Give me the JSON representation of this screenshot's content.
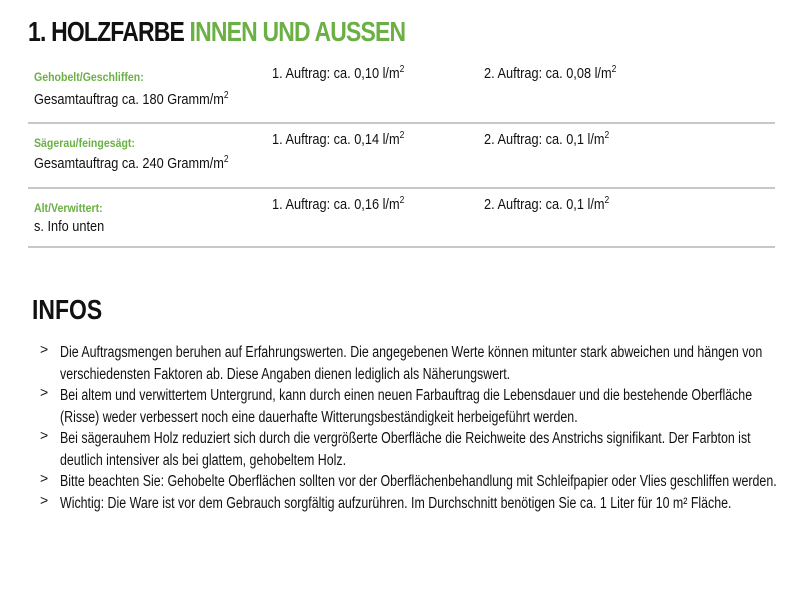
{
  "title": {
    "part1": "1. HOLZFARBE",
    "part2": "INNEN UND AUSSEN"
  },
  "colors": {
    "accent": "#6bb044",
    "divider": "#c8c8c8"
  },
  "rows": [
    {
      "label": "Gehobelt/Geschliffen:",
      "sub": "Gesamtauftrag ca. 180 Gramm/m",
      "sub_sup": "2",
      "c1": "1. Auftrag: ca. 0,10 l/m",
      "c2": "2. Auftrag: ca. 0,08 l/m",
      "sup": "2"
    },
    {
      "label": "Sägerau/feingesägt:",
      "sub": "Gesamtauftrag ca. 240 Gramm/m",
      "sub_sup": "2",
      "c1": "1. Auftrag: ca. 0,14 l/m",
      "c2": "2. Auftrag: ca. 0,1 l/m",
      "sup": "2"
    },
    {
      "label": "Alt/Verwittert:",
      "sub": "s. Info unten",
      "sub_sup": "",
      "c1": "1. Auftrag: ca. 0,16 l/m",
      "c2": "2. Auftrag: ca. 0,1 l/m",
      "sup": "2"
    }
  ],
  "infos": {
    "heading": "INFOS",
    "bullet_icon": "chevron-right",
    "items": [
      "Die Auftragsmengen beruhen auf Erfahrungswerten. Die angegebenen Werte können mitunter stark abweichen und hängen von verschiedensten Faktoren ab. Diese Angaben dienen lediglich als Näherungswert.",
      "Bei altem und verwittertem Untergrund, kann durch einen neuen Farbauftrag die Lebensdauer und die bestehende Oberfläche (Risse) weder verbessert noch eine dauerhafte Witterungsbeständigkeit herbeigeführt werden.",
      "Bei sägerauhem Holz reduziert sich durch die vergrößerte Oberfläche die Reichweite des Anstrichs signifikant. Der Farbton ist deutlich intensiver als bei glattem, gehobeltem Holz.",
      "Bitte beachten Sie: Gehobelte Oberflächen sollten vor der Oberflächenbehandlung mit Schleifpapier oder Vlies geschliffen werden.",
      "Wichtig: Die Ware ist vor dem Gebrauch sorgfältig aufzurühren. Im Durchschnitt benötigen Sie ca. 1 Liter für 10 m² Fläche."
    ]
  }
}
